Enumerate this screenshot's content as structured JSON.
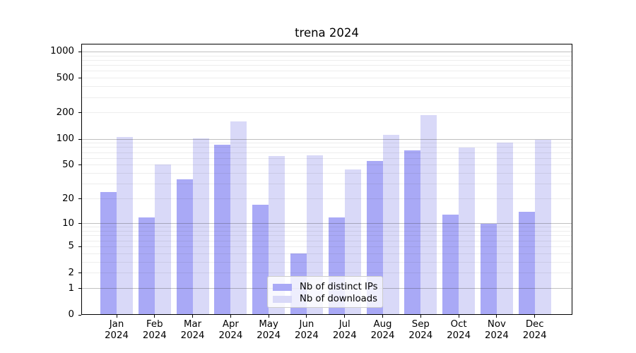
{
  "title": "trena 2024",
  "chart_data": {
    "type": "bar",
    "title": "trena 2024",
    "categories": [
      "Jan 2024",
      "Feb 2024",
      "Mar 2024",
      "Apr 2024",
      "May 2024",
      "Jun 2024",
      "Jul 2024",
      "Aug 2024",
      "Sep 2024",
      "Oct 2024",
      "Nov 2024",
      "Dec 2024"
    ],
    "series": [
      {
        "name": "Nb of distinct IPs",
        "color": "#a9a9f6",
        "values": [
          24,
          12,
          34,
          86,
          17,
          4,
          12,
          56,
          74,
          13,
          10,
          14
        ]
      },
      {
        "name": "Nb of downloads",
        "color": "#d9d9f8",
        "values": [
          105,
          51,
          102,
          161,
          64,
          65,
          45,
          112,
          189,
          80,
          92,
          98
        ]
      }
    ],
    "yscale": "log1p",
    "yticks": [
      0,
      1,
      2,
      5,
      10,
      20,
      50,
      100,
      200,
      500,
      1000
    ],
    "ylim": [
      0,
      1250
    ],
    "xlabel": "",
    "ylabel": "",
    "grid": "horizontal, log minors",
    "legend_position": "lower-center",
    "colors": {
      "bar_distinct_ips": "#a9a9f6",
      "bar_downloads": "#d9d9f8",
      "major_grid": "#bdbdbd",
      "minor_grid": "#ededed",
      "spine": "#000000",
      "background": "#ffffff"
    }
  }
}
